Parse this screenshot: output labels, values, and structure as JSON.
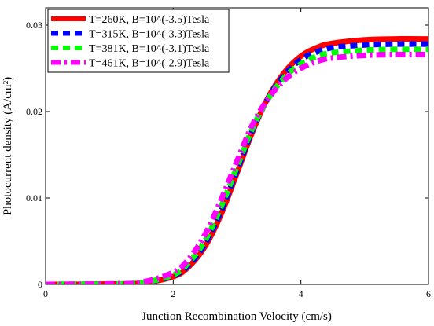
{
  "chart_data": {
    "type": "line",
    "xlabel": "Junction Recombination Velocity (cm/s)",
    "ylabel": "Photocurrent density (A/cm²)",
    "xlim": [
      0,
      6
    ],
    "ylim": [
      0,
      0.032
    ],
    "x_ticks": [
      "0",
      "2",
      "4",
      "6"
    ],
    "y_ticks": [
      "0",
      "0.01",
      "0.02",
      "0.03"
    ],
    "grid": false,
    "legend_position": "top-left",
    "series": [
      {
        "name": "T=260K, B=10^(-3.5)Tesla",
        "color": "#ff0000",
        "style": "solid",
        "x": [
          0,
          1.0,
          1.5,
          2.0,
          2.25,
          2.5,
          2.75,
          3.0,
          3.25,
          3.5,
          3.75,
          4.0,
          4.25,
          4.5,
          5.0,
          5.5,
          6.0
        ],
        "y": [
          0,
          4e-05,
          0.00015,
          0.0009,
          0.0021,
          0.0044,
          0.0081,
          0.0129,
          0.0178,
          0.0218,
          0.0246,
          0.0264,
          0.0274,
          0.0279,
          0.0283,
          0.0284,
          0.0284
        ]
      },
      {
        "name": "T=315K, B=10^(-3.3)Tesla",
        "color": "#0000ff",
        "style": "dashed",
        "x": [
          0,
          1.0,
          1.5,
          2.0,
          2.25,
          2.5,
          2.75,
          3.0,
          3.25,
          3.5,
          3.75,
          4.0,
          4.25,
          4.5,
          5.0,
          5.5,
          6.0
        ],
        "y": [
          0,
          4e-05,
          0.00017,
          0.001,
          0.0023,
          0.0047,
          0.0085,
          0.0132,
          0.018,
          0.0217,
          0.0243,
          0.026,
          0.0269,
          0.0274,
          0.0277,
          0.0278,
          0.0278
        ]
      },
      {
        "name": "T=381K, B=10^(-3.1)Tesla",
        "color": "#00ff00",
        "style": "dashed",
        "x": [
          0,
          1.0,
          1.5,
          2.0,
          2.25,
          2.5,
          2.75,
          3.0,
          3.25,
          3.5,
          3.75,
          4.0,
          4.25,
          4.5,
          5.0,
          5.5,
          6.0
        ],
        "y": [
          0,
          5e-05,
          0.0002,
          0.0011,
          0.0026,
          0.0051,
          0.009,
          0.0136,
          0.0182,
          0.0216,
          0.024,
          0.0255,
          0.0264,
          0.0268,
          0.0271,
          0.0272,
          0.0272
        ]
      },
      {
        "name": "T=461K, B=10^(-2.9)Tesla",
        "color": "#ff00ff",
        "style": "dashdot",
        "x": [
          0,
          1.0,
          1.5,
          2.0,
          2.25,
          2.5,
          2.75,
          3.0,
          3.25,
          3.5,
          3.75,
          4.0,
          4.25,
          4.5,
          5.0,
          5.5,
          6.0
        ],
        "y": [
          0,
          6e-05,
          0.00025,
          0.0014,
          0.003,
          0.0058,
          0.0098,
          0.0143,
          0.0186,
          0.0216,
          0.0237,
          0.025,
          0.0258,
          0.0262,
          0.0265,
          0.0266,
          0.0266
        ]
      }
    ]
  }
}
